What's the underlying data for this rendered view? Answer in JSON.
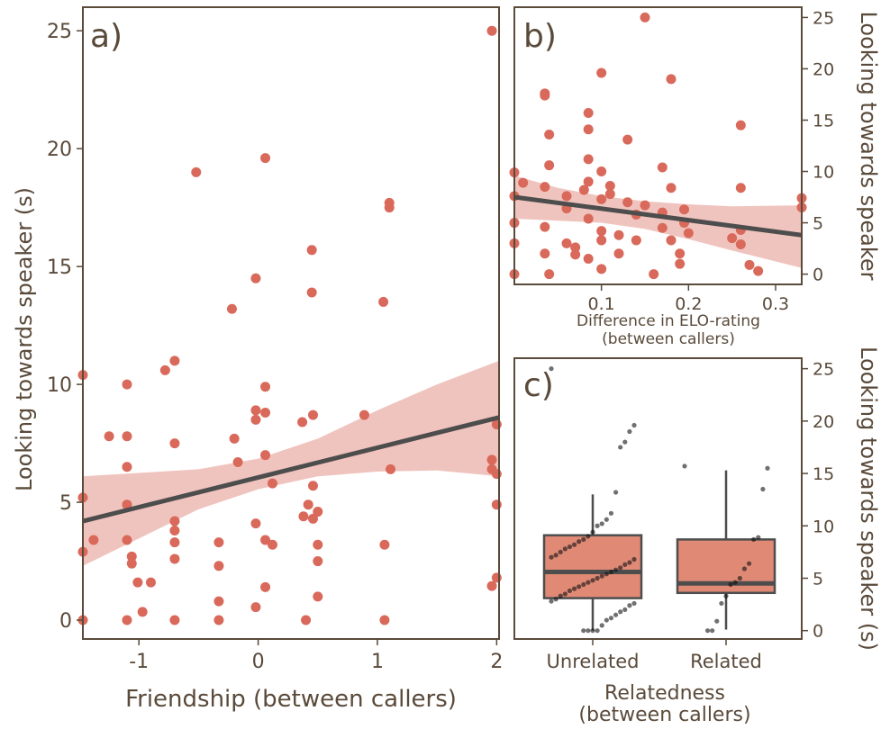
{
  "colors": {
    "point": "#d9695a",
    "band": "#e8a49b",
    "line": "#4d4d4d",
    "box": "#e08a76",
    "jitter": "#111111",
    "axis": "#5a4a3a"
  },
  "panel_a": {
    "label": "a)",
    "xlabel": "Friendship (between callers)",
    "ylabel": "Looking towards speaker (s)"
  },
  "panel_b": {
    "label": "b)",
    "xlabel_line1": "Difference in ELO-rating",
    "xlabel_line2": "(between callers)",
    "ylabel": "Looking towards speaker"
  },
  "panel_c": {
    "label": "c)",
    "xlabel_line1": "Relatedness",
    "xlabel_line2": "(between callers)",
    "ylabel": "Looking towards speaker (s)"
  },
  "chart_data": [
    {
      "panel": "a",
      "type": "scatter",
      "xlabel": "Friendship (between callers)",
      "ylabel": "Looking towards speaker (s)",
      "xlim": [
        -1.47,
        2.02
      ],
      "ylim": [
        -0.8,
        26
      ],
      "xticks": [
        -1,
        0,
        1,
        2
      ],
      "yticks": [
        0,
        5,
        10,
        15,
        20,
        25
      ],
      "points": [
        [
          -1.47,
          10.4
        ],
        [
          -1.47,
          5.2
        ],
        [
          -1.47,
          2.9
        ],
        [
          -1.47,
          0.0
        ],
        [
          -1.38,
          3.4
        ],
        [
          -1.25,
          7.8
        ],
        [
          -1.1,
          10.0
        ],
        [
          -1.1,
          7.8
        ],
        [
          -1.1,
          6.5
        ],
        [
          -1.1,
          4.9
        ],
        [
          -1.1,
          3.4
        ],
        [
          -1.1,
          0.0
        ],
        [
          -1.06,
          2.7
        ],
        [
          -1.06,
          2.4
        ],
        [
          -1.01,
          1.6
        ],
        [
          -0.97,
          0.35
        ],
        [
          -0.9,
          1.6
        ],
        [
          -0.78,
          10.6
        ],
        [
          -0.7,
          11.0
        ],
        [
          -0.7,
          7.5
        ],
        [
          -0.7,
          4.2
        ],
        [
          -0.7,
          3.8
        ],
        [
          -0.7,
          3.3
        ],
        [
          -0.7,
          2.6
        ],
        [
          -0.7,
          0.0
        ],
        [
          -0.52,
          19.0
        ],
        [
          -0.33,
          3.3
        ],
        [
          -0.33,
          2.3
        ],
        [
          -0.33,
          0.8
        ],
        [
          -0.33,
          0.0
        ],
        [
          -0.22,
          13.2
        ],
        [
          -0.2,
          7.7
        ],
        [
          -0.17,
          6.7
        ],
        [
          -0.02,
          14.5
        ],
        [
          -0.02,
          8.9
        ],
        [
          -0.02,
          8.5
        ],
        [
          -0.02,
          4.1
        ],
        [
          -0.02,
          0.55
        ],
        [
          0.06,
          19.6
        ],
        [
          0.06,
          9.9
        ],
        [
          0.06,
          8.8
        ],
        [
          0.06,
          7.0
        ],
        [
          0.06,
          3.4
        ],
        [
          0.06,
          1.4
        ],
        [
          0.12,
          5.8
        ],
        [
          0.12,
          3.2
        ],
        [
          0.37,
          8.4
        ],
        [
          0.38,
          4.4
        ],
        [
          0.4,
          0.0
        ],
        [
          0.42,
          4.9
        ],
        [
          0.45,
          15.7
        ],
        [
          0.45,
          13.9
        ],
        [
          0.46,
          8.7
        ],
        [
          0.46,
          5.7
        ],
        [
          0.46,
          4.3
        ],
        [
          0.5,
          4.6
        ],
        [
          0.5,
          3.2
        ],
        [
          0.5,
          2.5
        ],
        [
          0.5,
          1.0
        ],
        [
          0.89,
          8.7
        ],
        [
          1.05,
          13.5
        ],
        [
          1.06,
          3.2
        ],
        [
          1.06,
          0.0
        ],
        [
          1.1,
          17.7
        ],
        [
          1.1,
          17.5
        ],
        [
          1.11,
          6.4
        ],
        [
          1.96,
          25.0
        ],
        [
          1.96,
          6.8
        ],
        [
          1.96,
          6.4
        ],
        [
          1.96,
          1.45
        ],
        [
          2.0,
          8.3
        ],
        [
          2.0,
          6.2
        ],
        [
          2.0,
          4.9
        ],
        [
          2.0,
          1.8
        ]
      ],
      "regression": {
        "x": [
          -1.47,
          2.02
        ],
        "y": [
          4.2,
          8.6
        ]
      },
      "ci_band": {
        "x": [
          -1.47,
          -0.5,
          0.0,
          0.5,
          1.0,
          1.5,
          2.02
        ],
        "lower": [
          2.3,
          4.7,
          5.55,
          6.1,
          6.3,
          6.35,
          6.1
        ],
        "upper": [
          6.1,
          6.4,
          6.85,
          7.7,
          8.9,
          10.0,
          11.0
        ]
      }
    },
    {
      "panel": "b",
      "type": "scatter",
      "xlabel": "Difference in ELO-rating (between callers)",
      "ylabel": "Looking towards speaker",
      "xlim": [
        0.0,
        0.33
      ],
      "ylim": [
        -1.0,
        26
      ],
      "xticks": [
        0.1,
        0.2,
        0.3
      ],
      "yticks": [
        0,
        5,
        10,
        15,
        20,
        25
      ],
      "points": [
        [
          0.0,
          9.9
        ],
        [
          0.0,
          7.6
        ],
        [
          0.0,
          5.0
        ],
        [
          0.0,
          3.0
        ],
        [
          0.0,
          0.0
        ],
        [
          0.01,
          8.9
        ],
        [
          0.035,
          17.6
        ],
        [
          0.035,
          17.4
        ],
        [
          0.035,
          8.5
        ],
        [
          0.035,
          4.6
        ],
        [
          0.035,
          2.0
        ],
        [
          0.04,
          10.6
        ],
        [
          0.04,
          13.6
        ],
        [
          0.04,
          0.0
        ],
        [
          0.06,
          7.6
        ],
        [
          0.06,
          6.4
        ],
        [
          0.06,
          3.0
        ],
        [
          0.07,
          1.9
        ],
        [
          0.07,
          2.6
        ],
        [
          0.08,
          8.2
        ],
        [
          0.085,
          15.7
        ],
        [
          0.085,
          14.1
        ],
        [
          0.085,
          11.2
        ],
        [
          0.085,
          9.0
        ],
        [
          0.085,
          5.4
        ],
        [
          0.085,
          1.5
        ],
        [
          0.1,
          19.6
        ],
        [
          0.1,
          10.0
        ],
        [
          0.1,
          7.3
        ],
        [
          0.1,
          4.2
        ],
        [
          0.1,
          3.3
        ],
        [
          0.1,
          0.5
        ],
        [
          0.11,
          8.6
        ],
        [
          0.11,
          7.8
        ],
        [
          0.12,
          3.8
        ],
        [
          0.12,
          2.0
        ],
        [
          0.13,
          13.1
        ],
        [
          0.13,
          7.0
        ],
        [
          0.14,
          5.8
        ],
        [
          0.14,
          3.3
        ],
        [
          0.15,
          25.0
        ],
        [
          0.15,
          6.7
        ],
        [
          0.16,
          0.0
        ],
        [
          0.17,
          10.4
        ],
        [
          0.17,
          6.0
        ],
        [
          0.17,
          4.5
        ],
        [
          0.18,
          19.0
        ],
        [
          0.18,
          8.4
        ],
        [
          0.18,
          3.3
        ],
        [
          0.19,
          2.0
        ],
        [
          0.19,
          1.0
        ],
        [
          0.195,
          6.3
        ],
        [
          0.195,
          5.0
        ],
        [
          0.2,
          4.0
        ],
        [
          0.25,
          3.5
        ],
        [
          0.26,
          14.5
        ],
        [
          0.26,
          8.4
        ],
        [
          0.26,
          4.3
        ],
        [
          0.26,
          2.9
        ],
        [
          0.27,
          0.9
        ],
        [
          0.28,
          0.3
        ],
        [
          0.33,
          7.4
        ],
        [
          0.33,
          6.5
        ]
      ],
      "regression": {
        "x": [
          0.0,
          0.33
        ],
        "y": [
          7.5,
          3.8
        ]
      },
      "ci_band": {
        "x": [
          0.0,
          0.05,
          0.1,
          0.15,
          0.2,
          0.25,
          0.33
        ],
        "lower": [
          5.4,
          5.2,
          5.0,
          4.4,
          3.4,
          2.3,
          0.6
        ],
        "upper": [
          9.6,
          8.4,
          7.6,
          7.1,
          6.8,
          6.6,
          6.7
        ]
      }
    },
    {
      "panel": "c",
      "type": "box",
      "xlabel": "Relatedness (between callers)",
      "ylabel": "Looking towards speaker (s)",
      "ylim": [
        -0.8,
        26
      ],
      "yticks": [
        0,
        5,
        10,
        15,
        20,
        25
      ],
      "categories": [
        "Unrelated",
        "Related"
      ],
      "boxes": [
        {
          "name": "Unrelated",
          "whisker_low": 0.0,
          "q1": 3.1,
          "median": 5.6,
          "q3": 9.1,
          "whisker_high": 13.0
        },
        {
          "name": "Related",
          "whisker_low": 0.1,
          "q1": 3.6,
          "median": 4.5,
          "q3": 8.7,
          "whisker_high": 15.3
        }
      ],
      "jitter_points": {
        "Unrelated": [
          25.0,
          19.6,
          19.0,
          18.0,
          17.5,
          13.2,
          11.2,
          10.6,
          10.2,
          10.0,
          9.4,
          9.0,
          8.7,
          8.5,
          8.2,
          8.0,
          7.8,
          7.5,
          7.2,
          7.0,
          6.8,
          6.5,
          6.3,
          6.0,
          5.8,
          5.6,
          5.4,
          5.2,
          5.0,
          4.8,
          4.6,
          4.4,
          4.2,
          4.0,
          3.8,
          3.5,
          3.3,
          3.0,
          2.8,
          2.6,
          2.4,
          2.0,
          1.8,
          1.5,
          1.2,
          1.0,
          0.5,
          0.0,
          0.0,
          0.0,
          0.0
        ],
        "Related": [
          15.7,
          15.5,
          13.5,
          8.9,
          8.7,
          6.4,
          5.9,
          5.0,
          4.6,
          4.4,
          3.3,
          2.6,
          0.9,
          0.0,
          0.0
        ]
      }
    }
  ]
}
